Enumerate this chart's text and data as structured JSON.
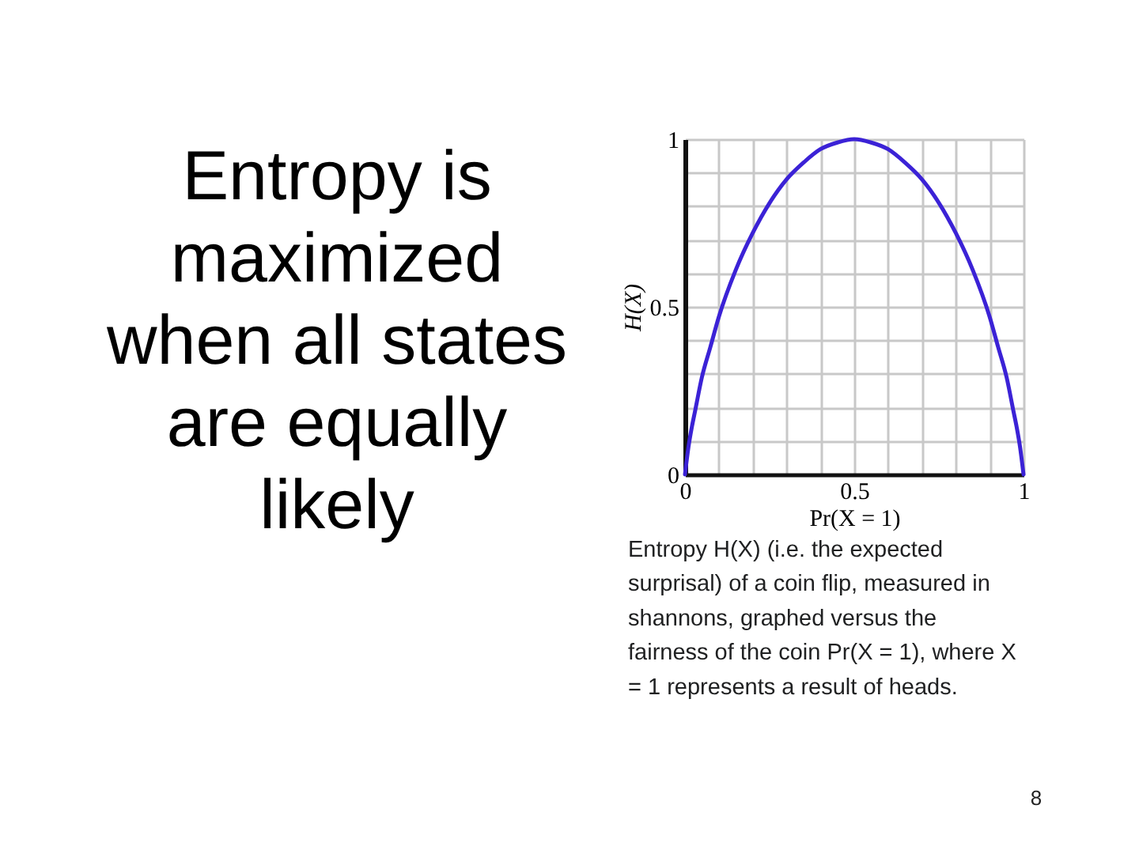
{
  "chart_data": {
    "type": "line",
    "title": "Entropy is maximized when all states are equally likely",
    "xlabel": "Pr(X = 1)",
    "ylabel": "H(X)",
    "x": [
      0,
      0.01,
      0.02,
      0.03,
      0.05,
      0.075,
      0.1,
      0.15,
      0.2,
      0.25,
      0.3,
      0.35,
      0.4,
      0.45,
      0.5,
      0.55,
      0.6,
      0.65,
      0.7,
      0.75,
      0.8,
      0.85,
      0.9,
      0.925,
      0.95,
      0.97,
      0.98,
      0.99,
      1
    ],
    "series": [
      {
        "color": "#3b22d6",
        "values": [
          0,
          0.08,
          0.14,
          0.19,
          0.29,
          0.38,
          0.47,
          0.61,
          0.72,
          0.81,
          0.88,
          0.93,
          0.97,
          0.99,
          1,
          0.99,
          0.97,
          0.93,
          0.88,
          0.81,
          0.72,
          0.61,
          0.47,
          0.38,
          0.29,
          0.19,
          0.14,
          0.08,
          0
        ]
      }
    ],
    "xlim": [
      0,
      1
    ],
    "ylim": [
      0,
      1
    ],
    "xticks": [
      0,
      {
        "value": 0.1,
        "label": null
      },
      {
        "value": 0.2,
        "label": null
      },
      {
        "value": 0.3,
        "label": null
      },
      {
        "value": 0.4,
        "label": null
      },
      0.5,
      {
        "value": 0.6,
        "label": null
      },
      {
        "value": 0.7,
        "label": null
      },
      {
        "value": 0.8,
        "label": null
      },
      {
        "value": 0.9,
        "label": null
      },
      1
    ],
    "yticks": [
      0,
      {
        "value": 0.1,
        "label": null
      },
      {
        "value": 0.2,
        "label": null
      },
      {
        "value": 0.3,
        "label": null
      },
      {
        "value": 0.4,
        "label": null
      },
      0.5,
      {
        "value": 0.6,
        "label": null
      },
      {
        "value": 0.7,
        "label": null
      },
      {
        "value": 0.8,
        "label": null
      },
      {
        "value": 0.9,
        "label": null
      },
      1
    ],
    "grid": true,
    "annotations": [
      "Entropy H(X) (i.e. the expected surprisal) of a coin flip, measured in shannons, graphed versus the fairness of the coin Pr(X = 1), where X = 1 represents a result of heads.",
      "8"
    ]
  }
}
